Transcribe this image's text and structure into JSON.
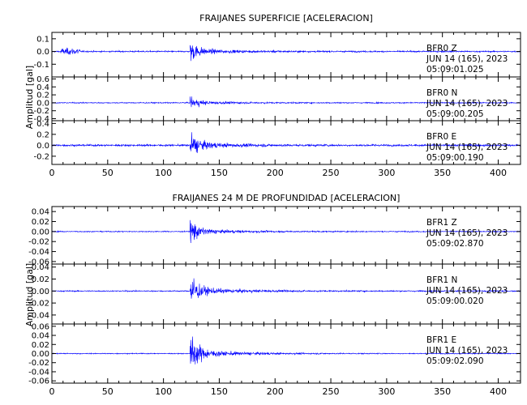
{
  "chart_data": [
    {
      "type": "line",
      "title": "FRAIJANES SUPERFICIE [ACELERACION]",
      "ylabel": "Amplitud [gal]",
      "xlabel": "",
      "xlim": [
        0,
        420
      ],
      "x_ticks": [
        "0",
        "50",
        "100",
        "150",
        "200",
        "250",
        "300",
        "350",
        "400"
      ],
      "series": [
        {
          "name": "BFR0 Z",
          "station": "BFR0",
          "component": "Z",
          "date": "JUN 14 (165), 2023",
          "time": "05:09:01.025",
          "ylim": [
            -0.2,
            0.15
          ],
          "y_ticks": [
            "0.1",
            "0.0",
            "-0.1"
          ],
          "noise": 0.008,
          "peak": 0.1,
          "onset": 124,
          "pre_event": {
            "start": 8,
            "end": 25,
            "amp": 0.03
          }
        },
        {
          "name": "BFR0 N",
          "station": "BFR0",
          "component": "N",
          "date": "JUN 14 (165), 2023",
          "time": "05:09:00.205",
          "ylim": [
            -0.45,
            0.65
          ],
          "y_ticks": [
            "0.6",
            "0.4",
            "0.2",
            "0.0",
            "-0.2",
            "-0.4"
          ],
          "noise": 0.02,
          "peak": 0.2,
          "onset": 124
        },
        {
          "name": "BFR0 E",
          "station": "BFR0",
          "component": "E",
          "date": "JUN 14 (165), 2023",
          "time": "05:09:00.190",
          "ylim": [
            -0.35,
            0.45
          ],
          "y_ticks": [
            "0.4",
            "0.2",
            "0.0",
            "-0.2"
          ],
          "noise": 0.025,
          "peak": 0.28,
          "onset": 124
        }
      ]
    },
    {
      "type": "line",
      "title": "FRAIJANES 24 M DE PROFUNDIDAD [ACELERACION]",
      "ylabel": "Amplitud [gal]",
      "xlabel": "",
      "xlim": [
        0,
        420
      ],
      "x_ticks": [
        "0",
        "50",
        "100",
        "150",
        "200",
        "250",
        "300",
        "350",
        "400"
      ],
      "series": [
        {
          "name": "BFR1 Z",
          "station": "BFR1",
          "component": "Z",
          "date": "JUN 14 (165), 2023",
          "time": "05:09:02.870",
          "ylim": [
            -0.065,
            0.05
          ],
          "y_ticks": [
            "0.04",
            "0.02",
            "0.00",
            "-0.02",
            "-0.04",
            "-0.06"
          ],
          "noise": 0.0015,
          "peak": 0.03,
          "onset": 124
        },
        {
          "name": "BFR1 N",
          "station": "BFR1",
          "component": "N",
          "date": "JUN 14 (165), 2023",
          "time": "05:09:00.020",
          "ylim": [
            -0.055,
            0.045
          ],
          "y_ticks": [
            "0.04",
            "0.02",
            "0.00",
            "-0.02",
            "-0.04"
          ],
          "noise": 0.0015,
          "peak": 0.032,
          "onset": 124
        },
        {
          "name": "BFR1 E",
          "station": "BFR1",
          "component": "E",
          "date": "JUN 14 (165), 2023",
          "time": "05:09:02.090",
          "ylim": [
            -0.065,
            0.065
          ],
          "y_ticks": [
            "0.06",
            "0.04",
            "0.02",
            "0.00",
            "-0.02",
            "-0.04",
            "-0.06"
          ],
          "noise": 0.0015,
          "peak": 0.05,
          "onset": 124
        }
      ]
    }
  ],
  "colors": {
    "trace": "#0000ff",
    "axes": "#000000",
    "background": "#ffffff"
  }
}
